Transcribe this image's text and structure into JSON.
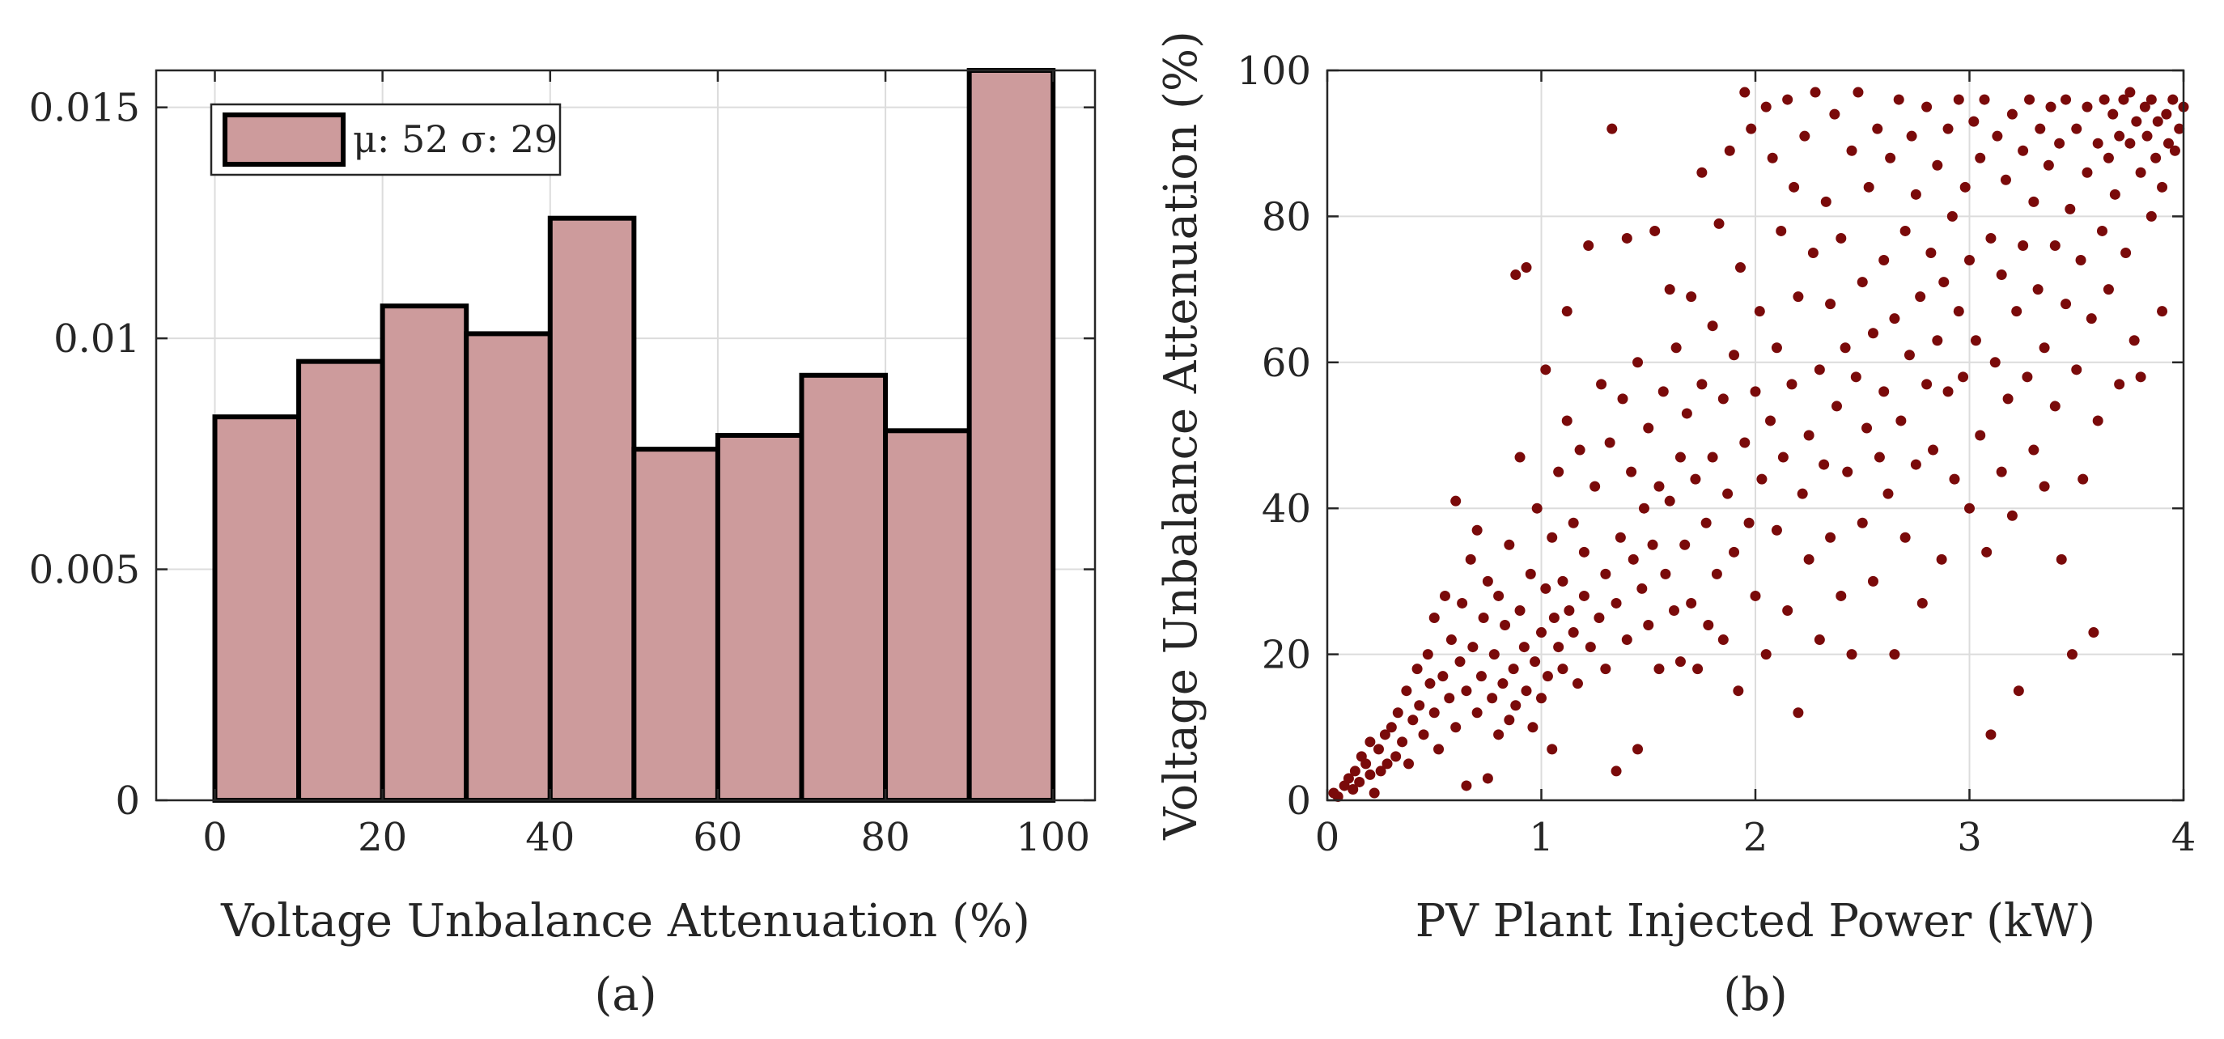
{
  "chart_data": [
    {
      "type": "bar",
      "subtype": "histogram",
      "caption": "(a)",
      "xlabel": "Voltage Unbalance Attenuation (%)",
      "ylabel": "",
      "xlim": [
        -7,
        105
      ],
      "ylim": [
        0,
        0.0158
      ],
      "xticks": [
        0,
        20,
        40,
        60,
        80,
        100
      ],
      "xtick_labels": [
        "0",
        "20",
        "40",
        "60",
        "80",
        "100"
      ],
      "yticks": [
        0,
        0.005,
        0.01,
        0.015
      ],
      "ytick_labels": [
        "0",
        "0.005",
        "0.01",
        "0.015"
      ],
      "bin_edges": [
        0,
        10,
        20,
        30,
        40,
        50,
        60,
        70,
        80,
        90,
        100
      ],
      "values": [
        0.0083,
        0.0095,
        0.0107,
        0.0101,
        0.0126,
        0.0076,
        0.0079,
        0.0092,
        0.008,
        0.0158
      ],
      "legend_text": "μ: 52 σ: 29",
      "legend_position": "top-left",
      "bar_color": "#cd9b9c",
      "edge_color": "#000000",
      "grid": true
    },
    {
      "type": "scatter",
      "caption": "(b)",
      "xlabel": "PV Plant Injected Power (kW)",
      "ylabel": "Voltage Unbalance Attenuation (%)",
      "xlim": [
        0,
        4
      ],
      "ylim": [
        0,
        100
      ],
      "xticks": [
        0,
        1,
        2,
        3,
        4
      ],
      "xtick_labels": [
        "0",
        "1",
        "2",
        "3",
        "4"
      ],
      "yticks": [
        0,
        20,
        40,
        60,
        80,
        100
      ],
      "ytick_labels": [
        "0",
        "20",
        "40",
        "60",
        "80",
        "100"
      ],
      "marker_color": "#7a0a0a",
      "grid": true,
      "points": [
        [
          0.03,
          1
        ],
        [
          0.05,
          0.5
        ],
        [
          0.08,
          2
        ],
        [
          0.1,
          3
        ],
        [
          0.12,
          1.5
        ],
        [
          0.13,
          4
        ],
        [
          0.15,
          2.5
        ],
        [
          0.16,
          6
        ],
        [
          0.18,
          5
        ],
        [
          0.2,
          3.5
        ],
        [
          0.2,
          8
        ],
        [
          0.22,
          1
        ],
        [
          0.24,
          7
        ],
        [
          0.25,
          4
        ],
        [
          0.27,
          9
        ],
        [
          0.28,
          5
        ],
        [
          0.3,
          10
        ],
        [
          0.32,
          6
        ],
        [
          0.33,
          12
        ],
        [
          0.35,
          8
        ],
        [
          0.37,
          15
        ],
        [
          0.38,
          5
        ],
        [
          0.4,
          11
        ],
        [
          0.42,
          18
        ],
        [
          0.43,
          13
        ],
        [
          0.45,
          9
        ],
        [
          0.47,
          20
        ],
        [
          0.48,
          16
        ],
        [
          0.5,
          12
        ],
        [
          0.5,
          25
        ],
        [
          0.52,
          7
        ],
        [
          0.54,
          17
        ],
        [
          0.55,
          28
        ],
        [
          0.57,
          14
        ],
        [
          0.58,
          22
        ],
        [
          0.6,
          10
        ],
        [
          0.6,
          41
        ],
        [
          0.62,
          19
        ],
        [
          0.63,
          27
        ],
        [
          0.65,
          15
        ],
        [
          0.65,
          2
        ],
        [
          0.67,
          33
        ],
        [
          0.68,
          21
        ],
        [
          0.7,
          12
        ],
        [
          0.7,
          37
        ],
        [
          0.72,
          17
        ],
        [
          0.73,
          25
        ],
        [
          0.75,
          30
        ],
        [
          0.75,
          3
        ],
        [
          0.77,
          14
        ],
        [
          0.78,
          20
        ],
        [
          0.8,
          28
        ],
        [
          0.8,
          9
        ],
        [
          0.82,
          16
        ],
        [
          0.83,
          24
        ],
        [
          0.85,
          35
        ],
        [
          0.85,
          11
        ],
        [
          0.87,
          18
        ],
        [
          0.88,
          13
        ],
        [
          0.88,
          72
        ],
        [
          0.9,
          26
        ],
        [
          0.9,
          47
        ],
        [
          0.92,
          21
        ],
        [
          0.93,
          73
        ],
        [
          0.93,
          15
        ],
        [
          0.95,
          31
        ],
        [
          0.96,
          10
        ],
        [
          0.97,
          19
        ],
        [
          0.98,
          40
        ],
        [
          1.0,
          23
        ],
        [
          1.0,
          14
        ],
        [
          1.02,
          29
        ],
        [
          1.02,
          59
        ],
        [
          1.03,
          17
        ],
        [
          1.05,
          36
        ],
        [
          1.05,
          7
        ],
        [
          1.06,
          25
        ],
        [
          1.08,
          21
        ],
        [
          1.08,
          45
        ],
        [
          1.1,
          30
        ],
        [
          1.1,
          18
        ],
        [
          1.12,
          67
        ],
        [
          1.12,
          52
        ],
        [
          1.13,
          26
        ],
        [
          1.15,
          23
        ],
        [
          1.15,
          38
        ],
        [
          1.17,
          16
        ],
        [
          1.18,
          48
        ],
        [
          1.2,
          28
        ],
        [
          1.2,
          34
        ],
        [
          1.22,
          76
        ],
        [
          1.23,
          21
        ],
        [
          1.25,
          43
        ],
        [
          1.27,
          25
        ],
        [
          1.28,
          57
        ],
        [
          1.3,
          31
        ],
        [
          1.3,
          18
        ],
        [
          1.32,
          49
        ],
        [
          1.33,
          92
        ],
        [
          1.35,
          27
        ],
        [
          1.35,
          4
        ],
        [
          1.37,
          36
        ],
        [
          1.38,
          55
        ],
        [
          1.4,
          22
        ],
        [
          1.4,
          77
        ],
        [
          1.42,
          45
        ],
        [
          1.43,
          33
        ],
        [
          1.45,
          7
        ],
        [
          1.45,
          60
        ],
        [
          1.47,
          29
        ],
        [
          1.48,
          40
        ],
        [
          1.5,
          51
        ],
        [
          1.5,
          24
        ],
        [
          1.52,
          35
        ],
        [
          1.53,
          78
        ],
        [
          1.55,
          43
        ],
        [
          1.55,
          18
        ],
        [
          1.57,
          56
        ],
        [
          1.58,
          31
        ],
        [
          1.6,
          70
        ],
        [
          1.6,
          41
        ],
        [
          1.62,
          26
        ],
        [
          1.63,
          62
        ],
        [
          1.65,
          47
        ],
        [
          1.65,
          19
        ],
        [
          1.67,
          35
        ],
        [
          1.68,
          53
        ],
        [
          1.7,
          69
        ],
        [
          1.7,
          27
        ],
        [
          1.72,
          44
        ],
        [
          1.73,
          18
        ],
        [
          1.75,
          86
        ],
        [
          1.75,
          57
        ],
        [
          1.77,
          38
        ],
        [
          1.78,
          24
        ],
        [
          1.8,
          65
        ],
        [
          1.8,
          47
        ],
        [
          1.82,
          31
        ],
        [
          1.83,
          79
        ],
        [
          1.85,
          55
        ],
        [
          1.85,
          22
        ],
        [
          1.87,
          42
        ],
        [
          1.88,
          89
        ],
        [
          1.9,
          61
        ],
        [
          1.9,
          34
        ],
        [
          1.92,
          15
        ],
        [
          1.93,
          73
        ],
        [
          1.95,
          49
        ],
        [
          1.95,
          97
        ],
        [
          1.97,
          38
        ],
        [
          1.98,
          92
        ],
        [
          2.0,
          56
        ],
        [
          2.0,
          28
        ],
        [
          2.02,
          67
        ],
        [
          2.03,
          44
        ],
        [
          2.05,
          95
        ],
        [
          2.05,
          20
        ],
        [
          2.07,
          52
        ],
        [
          2.08,
          88
        ],
        [
          2.1,
          62
        ],
        [
          2.1,
          37
        ],
        [
          2.12,
          78
        ],
        [
          2.13,
          47
        ],
        [
          2.15,
          96
        ],
        [
          2.15,
          26
        ],
        [
          2.17,
          57
        ],
        [
          2.18,
          84
        ],
        [
          2.2,
          12
        ],
        [
          2.2,
          69
        ],
        [
          2.22,
          42
        ],
        [
          2.23,
          91
        ],
        [
          2.25,
          50
        ],
        [
          2.25,
          33
        ],
        [
          2.27,
          75
        ],
        [
          2.28,
          97
        ],
        [
          2.3,
          59
        ],
        [
          2.3,
          22
        ],
        [
          2.32,
          46
        ],
        [
          2.33,
          82
        ],
        [
          2.35,
          68
        ],
        [
          2.35,
          36
        ],
        [
          2.37,
          94
        ],
        [
          2.38,
          54
        ],
        [
          2.4,
          28
        ],
        [
          2.4,
          77
        ],
        [
          2.42,
          62
        ],
        [
          2.43,
          45
        ],
        [
          2.45,
          89
        ],
        [
          2.45,
          20
        ],
        [
          2.47,
          58
        ],
        [
          2.48,
          97
        ],
        [
          2.5,
          71
        ],
        [
          2.5,
          38
        ],
        [
          2.52,
          51
        ],
        [
          2.53,
          84
        ],
        [
          2.55,
          64
        ],
        [
          2.55,
          30
        ],
        [
          2.57,
          92
        ],
        [
          2.58,
          47
        ],
        [
          2.6,
          74
        ],
        [
          2.6,
          56
        ],
        [
          2.62,
          42
        ],
        [
          2.63,
          88
        ],
        [
          2.65,
          20
        ],
        [
          2.65,
          66
        ],
        [
          2.67,
          96
        ],
        [
          2.68,
          52
        ],
        [
          2.7,
          78
        ],
        [
          2.7,
          36
        ],
        [
          2.72,
          61
        ],
        [
          2.73,
          91
        ],
        [
          2.75,
          46
        ],
        [
          2.75,
          83
        ],
        [
          2.77,
          69
        ],
        [
          2.78,
          27
        ],
        [
          2.8,
          57
        ],
        [
          2.8,
          95
        ],
        [
          2.82,
          75
        ],
        [
          2.83,
          48
        ],
        [
          2.85,
          87
        ],
        [
          2.85,
          63
        ],
        [
          2.87,
          33
        ],
        [
          2.88,
          71
        ],
        [
          2.9,
          92
        ],
        [
          2.9,
          56
        ],
        [
          2.92,
          80
        ],
        [
          2.93,
          44
        ],
        [
          2.95,
          67
        ],
        [
          2.95,
          96
        ],
        [
          2.97,
          58
        ],
        [
          2.98,
          84
        ],
        [
          3.0,
          40
        ],
        [
          3.0,
          74
        ],
        [
          3.02,
          93
        ],
        [
          3.03,
          63
        ],
        [
          3.05,
          88
        ],
        [
          3.05,
          50
        ],
        [
          3.07,
          96
        ],
        [
          3.08,
          34
        ],
        [
          3.1,
          77
        ],
        [
          3.1,
          9
        ],
        [
          3.12,
          60
        ],
        [
          3.13,
          91
        ],
        [
          3.15,
          45
        ],
        [
          3.15,
          72
        ],
        [
          3.17,
          85
        ],
        [
          3.18,
          55
        ],
        [
          3.2,
          94
        ],
        [
          3.2,
          39
        ],
        [
          3.22,
          67
        ],
        [
          3.23,
          15
        ],
        [
          3.25,
          89
        ],
        [
          3.25,
          76
        ],
        [
          3.27,
          58
        ],
        [
          3.28,
          96
        ],
        [
          3.3,
          48
        ],
        [
          3.3,
          82
        ],
        [
          3.32,
          70
        ],
        [
          3.33,
          92
        ],
        [
          3.35,
          62
        ],
        [
          3.35,
          43
        ],
        [
          3.37,
          87
        ],
        [
          3.38,
          95
        ],
        [
          3.4,
          76
        ],
        [
          3.4,
          54
        ],
        [
          3.42,
          90
        ],
        [
          3.43,
          33
        ],
        [
          3.45,
          68
        ],
        [
          3.45,
          96
        ],
        [
          3.47,
          81
        ],
        [
          3.48,
          20
        ],
        [
          3.5,
          92
        ],
        [
          3.5,
          59
        ],
        [
          3.52,
          74
        ],
        [
          3.53,
          44
        ],
        [
          3.55,
          95
        ],
        [
          3.55,
          86
        ],
        [
          3.57,
          66
        ],
        [
          3.58,
          23
        ],
        [
          3.6,
          90
        ],
        [
          3.6,
          52
        ],
        [
          3.62,
          78
        ],
        [
          3.63,
          96
        ],
        [
          3.65,
          88
        ],
        [
          3.65,
          70
        ],
        [
          3.67,
          94
        ],
        [
          3.68,
          83
        ],
        [
          3.7,
          57
        ],
        [
          3.7,
          91
        ],
        [
          3.72,
          96
        ],
        [
          3.73,
          75
        ],
        [
          3.75,
          90
        ],
        [
          3.75,
          97
        ],
        [
          3.77,
          63
        ],
        [
          3.78,
          93
        ],
        [
          3.8,
          86
        ],
        [
          3.8,
          58
        ],
        [
          3.82,
          95
        ],
        [
          3.83,
          91
        ],
        [
          3.85,
          80
        ],
        [
          3.85,
          96
        ],
        [
          3.87,
          88
        ],
        [
          3.88,
          93
        ],
        [
          3.9,
          84
        ],
        [
          3.9,
          67
        ],
        [
          3.92,
          94
        ],
        [
          3.93,
          90
        ],
        [
          3.95,
          96
        ],
        [
          3.96,
          89
        ],
        [
          3.98,
          92
        ],
        [
          4.0,
          95
        ]
      ]
    }
  ]
}
